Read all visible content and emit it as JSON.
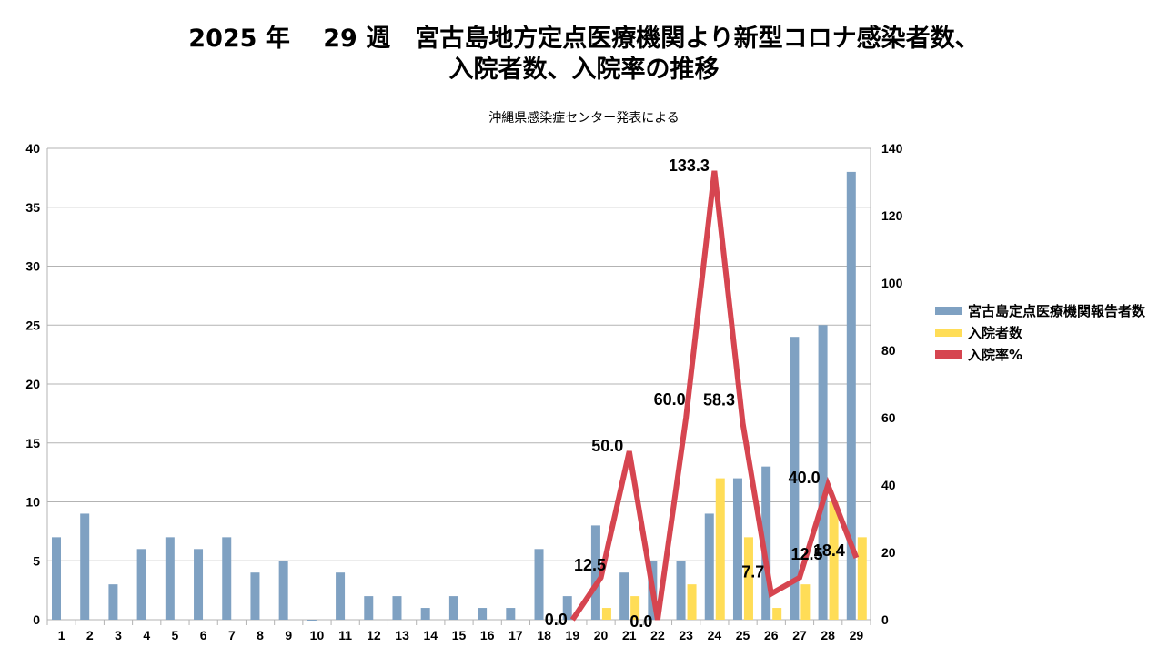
{
  "title_line1": "2025 年　 29 週　宮古島地方定点医療機関より新型コロナ感染者数、",
  "title_line2": "入院者数、入院率の推移",
  "subtitle": "沖縄県感染症センター発表による",
  "colors": {
    "reports": "#7fa1c2",
    "admitted": "#ffdd57",
    "rate": "#d64550",
    "grid": "#b3b3b3"
  },
  "chart_data": {
    "type": "bar",
    "categories": [
      "1",
      "2",
      "3",
      "4",
      "5",
      "6",
      "7",
      "8",
      "9",
      "10",
      "11",
      "12",
      "13",
      "14",
      "15",
      "16",
      "17",
      "18",
      "19",
      "20",
      "21",
      "22",
      "23",
      "24",
      "25",
      "26",
      "27",
      "28",
      "29"
    ],
    "series": [
      {
        "name": "宮古島定点医療機関報告者数",
        "type": "bar",
        "axis": "left",
        "values": [
          7,
          9,
          3,
          6,
          7,
          6,
          7,
          4,
          5,
          0,
          4,
          2,
          2,
          1,
          2,
          1,
          1,
          6,
          2,
          8,
          4,
          5,
          5,
          9,
          12,
          13,
          24,
          25,
          38
        ]
      },
      {
        "name": "入院者数",
        "type": "bar",
        "axis": "left",
        "values": [
          0,
          0,
          0,
          0,
          0,
          0,
          0,
          0,
          0,
          0,
          0,
          0,
          0,
          0,
          0,
          0,
          0,
          0,
          0,
          1,
          2,
          0,
          3,
          12,
          7,
          1,
          3,
          10,
          7
        ]
      },
      {
        "name": "入院率%",
        "type": "line",
        "axis": "right",
        "values": [
          null,
          null,
          null,
          null,
          null,
          null,
          null,
          null,
          null,
          null,
          null,
          null,
          null,
          null,
          null,
          null,
          null,
          null,
          0.0,
          12.5,
          50.0,
          0.0,
          60.0,
          133.3,
          58.3,
          7.7,
          12.5,
          40.0,
          18.4
        ],
        "labels": [
          null,
          null,
          null,
          null,
          null,
          null,
          null,
          null,
          null,
          null,
          null,
          null,
          null,
          null,
          null,
          null,
          null,
          null,
          "0.0",
          "12.5",
          "50.0",
          "0.0",
          "60.0",
          "133.3",
          "58.3",
          "7.7",
          "12.5",
          "40.0",
          "18.4"
        ]
      }
    ],
    "y_left": {
      "range": [
        0,
        40
      ],
      "ticks": [
        "0",
        "5",
        "10",
        "15",
        "20",
        "25",
        "30",
        "35",
        "40"
      ]
    },
    "y_right": {
      "range": [
        0,
        140
      ],
      "ticks": [
        "0",
        "20",
        "40",
        "60",
        "80",
        "100",
        "120",
        "140"
      ]
    },
    "grid": true,
    "legend_position": "right"
  }
}
